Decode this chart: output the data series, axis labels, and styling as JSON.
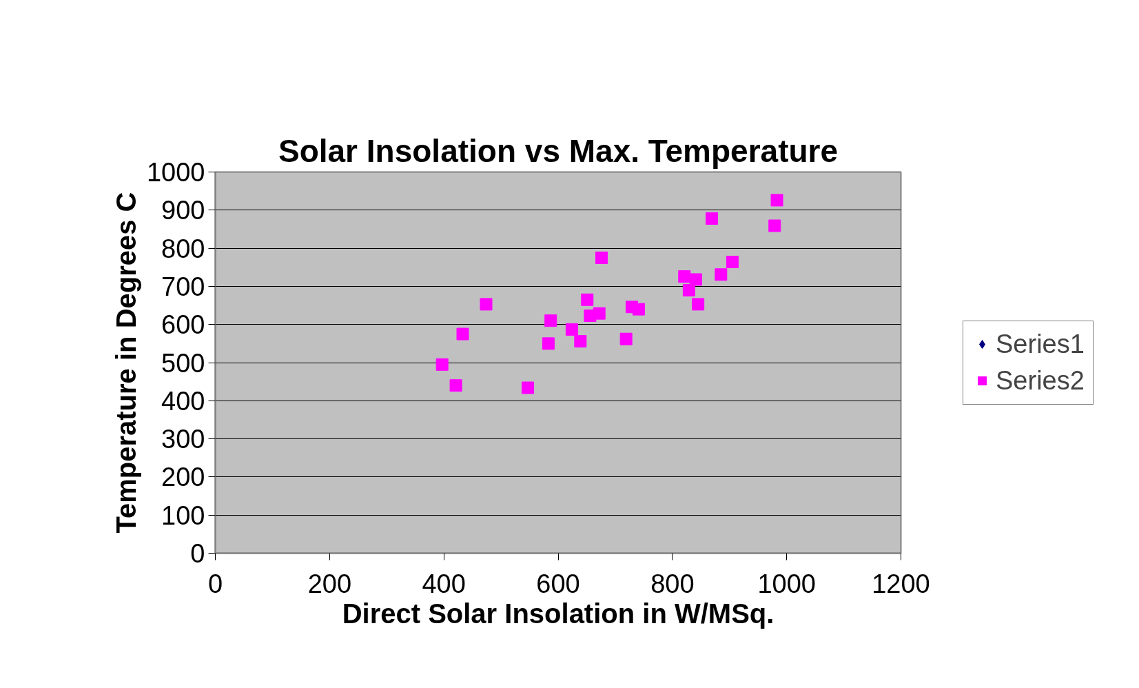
{
  "chart_data": {
    "type": "scatter",
    "title": "Solar Insolation vs Max. Temperature",
    "xlabel": "Direct Solar Insolation in W/MSq.",
    "ylabel": "Temperature in Degrees C",
    "xlim": [
      0,
      1200
    ],
    "xticks": [
      0,
      200,
      400,
      600,
      800,
      1000,
      1200
    ],
    "ylim": [
      0,
      1000
    ],
    "yticks": [
      0,
      100,
      200,
      300,
      400,
      500,
      600,
      700,
      800,
      900,
      1000
    ],
    "grid": "y",
    "legend": "right",
    "series": [
      {
        "name": "Series1",
        "color": "#000080",
        "marker": "diamond"
      },
      {
        "name": "Series2",
        "color": "#ff00ff",
        "marker": "square",
        "x": [
          397,
          421,
          433,
          474,
          547,
          583,
          587,
          624,
          639,
          651,
          656,
          672,
          676,
          719,
          729,
          741,
          821,
          829,
          841,
          845,
          869,
          885,
          905,
          979,
          983
        ],
        "values": [
          495,
          440,
          575,
          653,
          434,
          550,
          610,
          587,
          556,
          665,
          623,
          629,
          775,
          562,
          646,
          640,
          726,
          690,
          718,
          653,
          878,
          731,
          764,
          859,
          926
        ]
      }
    ]
  }
}
